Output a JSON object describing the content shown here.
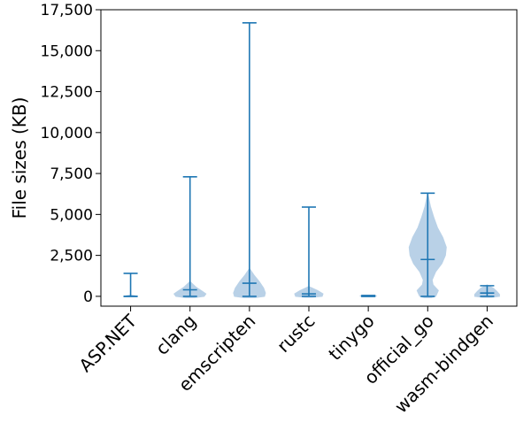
{
  "chart_data": {
    "type": "violin",
    "ylabel": "File sizes (KB)",
    "ylim": [
      -600,
      17500
    ],
    "yticks": [
      0,
      2500,
      5000,
      7500,
      10000,
      12500,
      15000,
      17500
    ],
    "ytick_labels": [
      "0",
      "2,500",
      "5,000",
      "7,500",
      "10,000",
      "12,500",
      "15,000",
      "17,500"
    ],
    "categories": [
      "ASP.NET",
      "clang",
      "emscripten",
      "rustc",
      "tinygo",
      "official_go",
      "wasm-bindgen"
    ],
    "series": [
      {
        "category": "ASP.NET",
        "min": 0,
        "median": 0,
        "max": 1400
      },
      {
        "category": "clang",
        "min": 0,
        "median": 400,
        "max": 7300
      },
      {
        "category": "emscripten",
        "min": 0,
        "median": 800,
        "max": 16700
      },
      {
        "category": "rustc",
        "min": 0,
        "median": 150,
        "max": 5450
      },
      {
        "category": "tinygo",
        "min": 0,
        "median": 0,
        "max": 50
      },
      {
        "category": "official_go",
        "min": 0,
        "median": 2250,
        "max": 6300
      },
      {
        "category": "wasm-bindgen",
        "min": 0,
        "median": 200,
        "max": 650
      }
    ],
    "color": "#1f77b4",
    "fill_color": "#b9d1e7",
    "grid": false,
    "legend": "none"
  }
}
